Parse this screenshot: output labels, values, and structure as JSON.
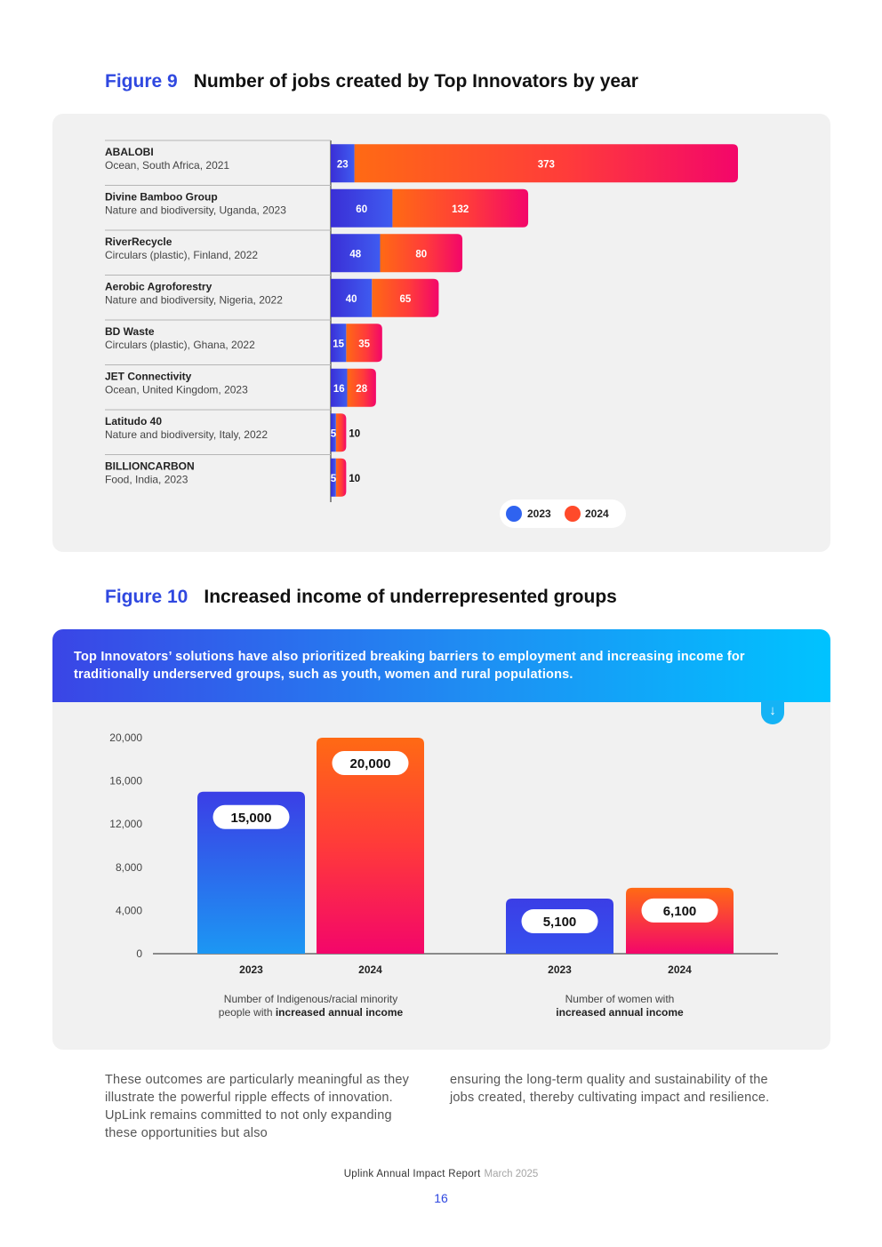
{
  "figure9": {
    "label": "Figure 9",
    "title": "Number of jobs created by Top Innovators by year"
  },
  "figure10": {
    "label": "Figure 10",
    "title": "Increased income of underrepresented groups",
    "banner": "Top Innovators’ solutions have also prioritized breaking barriers to employment and increasing income for traditionally underserved groups, such as youth, women and rural populations.",
    "arrow_icon": "arrow-down-icon"
  },
  "chart_data": [
    {
      "type": "bar",
      "orientation": "horizontal",
      "stacked": true,
      "title": "Number of jobs created by Top Innovators by year",
      "categories": [
        "ABALOBI",
        "Divine Bamboo Group",
        "RiverRecycle",
        "Aerobic Agroforestry",
        "BD Waste",
        "JET Connectivity",
        "Latitudo 40",
        "BILLIONCARBON"
      ],
      "subtitles": [
        "Ocean, South Africa, 2021",
        "Nature and biodiversity, Uganda, 2023",
        "Circulars (plastic), Finland, 2022",
        "Nature and biodiversity, Nigeria, 2022",
        "Circulars (plastic), Ghana, 2022",
        "Ocean, United Kingdom, 2023",
        "Nature and biodiversity, Italy, 2022",
        "Food, India, 2023"
      ],
      "series": [
        {
          "name": "2023",
          "color": "#3b3ee0",
          "values": [
            23,
            60,
            48,
            40,
            15,
            16,
            5,
            5
          ]
        },
        {
          "name": "2024",
          "color": "#ff4a2a",
          "values": [
            373,
            132,
            80,
            65,
            35,
            28,
            10,
            10
          ]
        }
      ],
      "legend": [
        "2023",
        "2024"
      ],
      "legend_position": "bottom-right",
      "xlim": [
        0,
        400
      ]
    },
    {
      "type": "bar",
      "title": "Increased income of underrepresented groups",
      "ylim": [
        0,
        20000
      ],
      "yticks": [
        "0",
        "4,000",
        "8,000",
        "12,000",
        "16,000",
        "20,000"
      ],
      "grid": false,
      "groups": [
        {
          "label_prefix": "Number of Indigenous/racial minority",
          "label_mid": "people with ",
          "label_bold": "increased annual income",
          "categories": [
            "2023",
            "2024"
          ],
          "values": [
            15000,
            20000
          ],
          "value_labels": [
            "15,000",
            "20,000"
          ]
        },
        {
          "label_prefix": "Number of women with",
          "label_mid": "",
          "label_bold": "increased annual income",
          "categories": [
            "2023",
            "2024"
          ],
          "values": [
            5100,
            6100
          ],
          "value_labels": [
            "5,100",
            "6,100"
          ]
        }
      ]
    }
  ],
  "body": {
    "left": "These outcomes are particularly meaningful as they illustrate the powerful ripple effects of innovation. UpLink remains committed to not only expanding these opportunities but also",
    "right": "ensuring the long-term quality and sustainability of the jobs created, thereby cultivating impact and resilience."
  },
  "footer": {
    "report": "Uplink Annual Impact Report",
    "date": "March 2025",
    "page": "16"
  }
}
